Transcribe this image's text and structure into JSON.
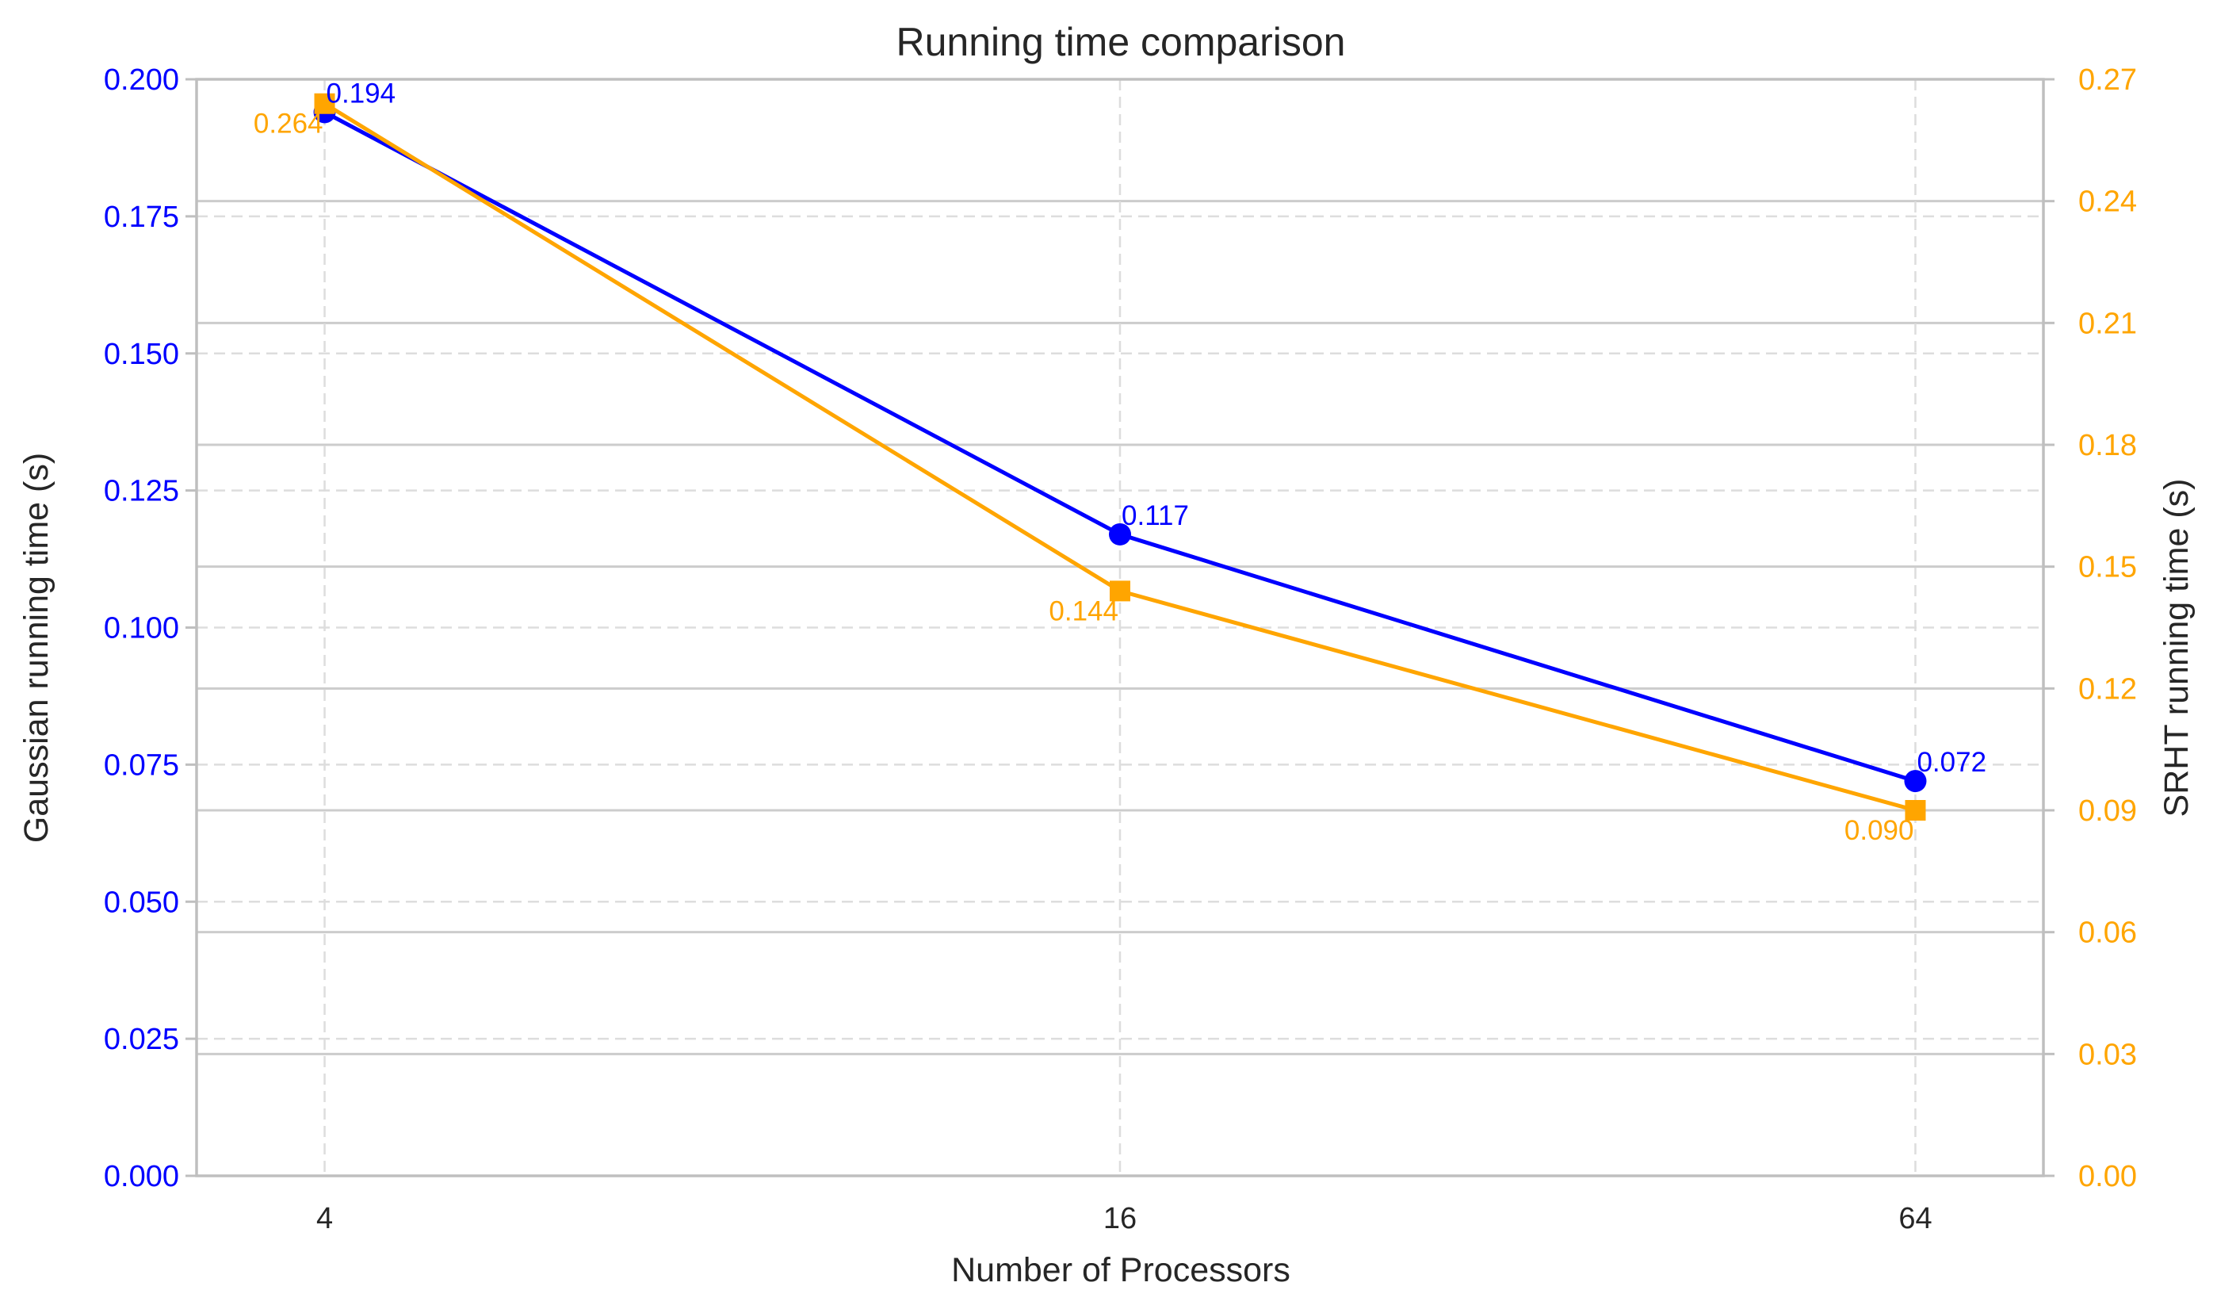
{
  "chart_data": {
    "type": "line",
    "title": "Running time comparison",
    "xlabel": "Number of Processors",
    "x_categories": [
      "4",
      "16",
      "64"
    ],
    "x_positions": [
      4,
      16,
      64
    ],
    "x_scale": "log2",
    "x_range": [
      3.2,
      80
    ],
    "ylabel_left": "Gaussian running time (s)",
    "ylabel_right": "SRHT running time (s)",
    "y_left_lim": [
      0,
      0.2
    ],
    "y_left_ticks": [
      "0.000",
      "0.025",
      "0.050",
      "0.075",
      "0.100",
      "0.125",
      "0.150",
      "0.175",
      "0.200"
    ],
    "y_right_lim": [
      0,
      0.27
    ],
    "y_right_ticks": [
      "0.00",
      "0.03",
      "0.06",
      "0.09",
      "0.12",
      "0.15",
      "0.18",
      "0.21",
      "0.24",
      "0.27"
    ],
    "grid": true,
    "series": [
      {
        "name": "Gaussian",
        "axis": "left",
        "color": "#0000ff",
        "marker": "circle",
        "values": [
          0.194,
          0.117,
          0.072
        ],
        "labels": [
          "0.194",
          "0.117",
          "0.072"
        ]
      },
      {
        "name": "SRHT",
        "axis": "right",
        "color": "#ffa500",
        "marker": "square",
        "values": [
          0.264,
          0.144,
          0.09
        ],
        "labels": [
          "0.264",
          "0.144",
          "0.090"
        ]
      }
    ]
  }
}
